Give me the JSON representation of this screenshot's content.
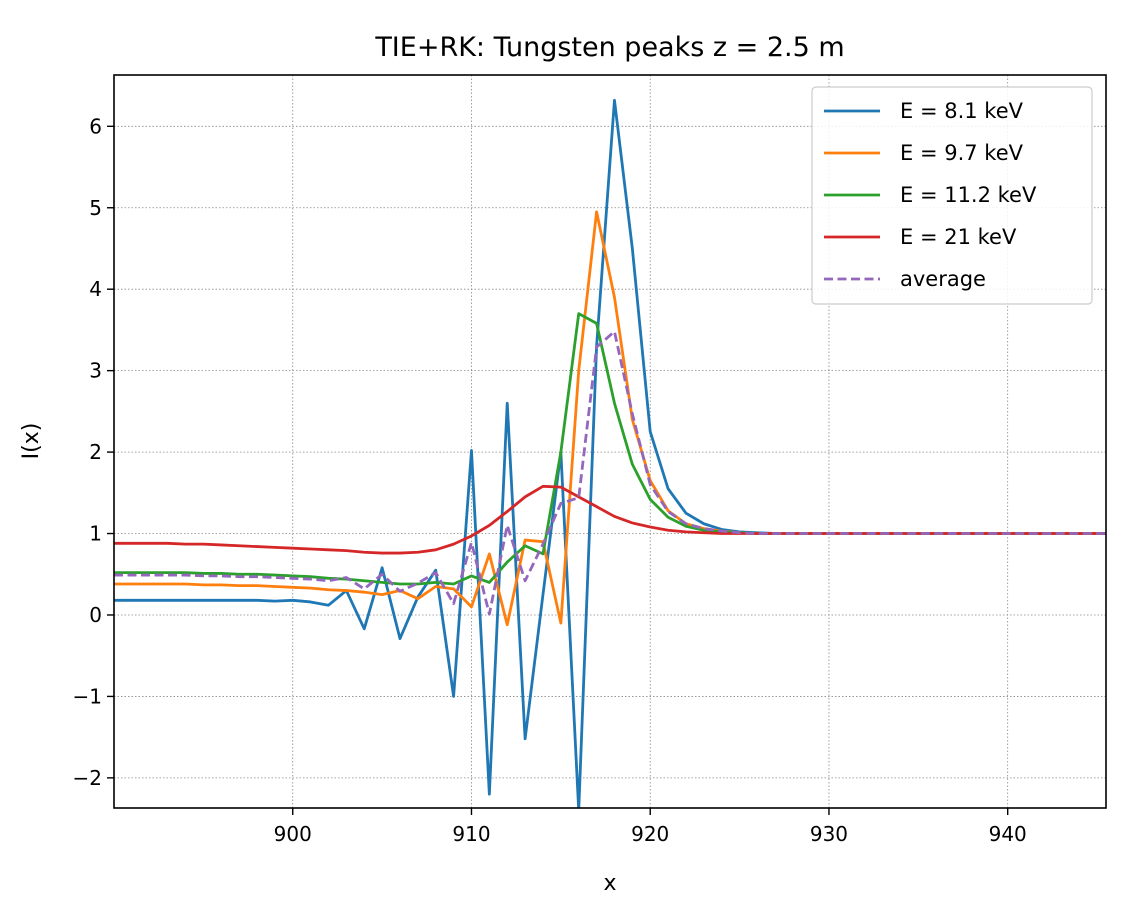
{
  "chart_data": {
    "type": "line",
    "title": "TIE+RK: Tungsten peaks  z = 2.5 m",
    "xlabel": "x",
    "ylabel": "I(x)",
    "xlim": [
      890,
      945.5
    ],
    "ylim": [
      -2.37,
      6.63
    ],
    "xticks": [
      900,
      910,
      920,
      930,
      940
    ],
    "yticks": [
      -2,
      -1,
      0,
      1,
      2,
      3,
      4,
      5,
      6
    ],
    "ytick_labels": [
      "−2",
      "−1",
      "0",
      "1",
      "2",
      "3",
      "4",
      "5",
      "6"
    ],
    "grid": true,
    "legend_position": "top-right",
    "x": [
      890,
      891,
      892,
      893,
      894,
      895,
      896,
      897,
      898,
      899,
      900,
      901,
      902,
      903,
      904,
      905,
      906,
      907,
      908,
      909,
      910,
      911,
      912,
      913,
      914,
      915,
      916,
      917,
      918,
      919,
      920,
      921,
      922,
      923,
      924,
      925,
      926,
      927,
      928,
      929,
      930,
      931,
      932,
      933,
      934,
      935,
      936,
      937,
      938,
      939,
      940,
      941,
      942,
      943,
      944,
      945,
      946
    ],
    "series": [
      {
        "name": "E = 8.1 keV",
        "color": "#1f77b4",
        "dash": "solid",
        "values": [
          0.18,
          0.18,
          0.18,
          0.18,
          0.18,
          0.18,
          0.18,
          0.18,
          0.18,
          0.17,
          0.18,
          0.16,
          0.12,
          0.3,
          -0.17,
          0.58,
          -0.29,
          0.22,
          0.55,
          -1.0,
          2.02,
          -2.2,
          2.6,
          -1.52,
          0.25,
          2.0,
          -2.4,
          3.3,
          6.32,
          4.5,
          2.25,
          1.55,
          1.25,
          1.12,
          1.05,
          1.02,
          1.01,
          1.0,
          1.0,
          1.0,
          1.0,
          1.0,
          1.0,
          1.0,
          1.0,
          1.0,
          1.0,
          1.0,
          1.0,
          1.0,
          1.0,
          1.0,
          1.0,
          1.0,
          1.0,
          1.0,
          1.0
        ]
      },
      {
        "name": "E = 9.7 keV",
        "color": "#ff7f0e",
        "dash": "solid",
        "values": [
          0.38,
          0.38,
          0.38,
          0.38,
          0.38,
          0.37,
          0.37,
          0.36,
          0.36,
          0.35,
          0.34,
          0.33,
          0.31,
          0.3,
          0.28,
          0.25,
          0.3,
          0.2,
          0.35,
          0.32,
          0.1,
          0.75,
          -0.12,
          0.92,
          0.9,
          -0.1,
          3.0,
          4.95,
          3.9,
          2.4,
          1.65,
          1.28,
          1.12,
          1.06,
          1.03,
          1.01,
          1.0,
          1.0,
          1.0,
          1.0,
          1.0,
          1.0,
          1.0,
          1.0,
          1.0,
          1.0,
          1.0,
          1.0,
          1.0,
          1.0,
          1.0,
          1.0,
          1.0,
          1.0,
          1.0,
          1.0,
          1.0
        ]
      },
      {
        "name": "E = 11.2 keV",
        "color": "#2ca02c",
        "dash": "solid",
        "values": [
          0.52,
          0.52,
          0.52,
          0.52,
          0.52,
          0.51,
          0.51,
          0.5,
          0.5,
          0.49,
          0.48,
          0.47,
          0.45,
          0.44,
          0.42,
          0.4,
          0.38,
          0.38,
          0.4,
          0.38,
          0.48,
          0.4,
          0.65,
          0.85,
          0.75,
          2.0,
          3.7,
          3.58,
          2.6,
          1.85,
          1.42,
          1.2,
          1.09,
          1.04,
          1.02,
          1.01,
          1.0,
          1.0,
          1.0,
          1.0,
          1.0,
          1.0,
          1.0,
          1.0,
          1.0,
          1.0,
          1.0,
          1.0,
          1.0,
          1.0,
          1.0,
          1.0,
          1.0,
          1.0,
          1.0,
          1.0,
          1.0
        ]
      },
      {
        "name": "E = 21 keV",
        "color": "#d62728",
        "dash": "solid",
        "values": [
          0.88,
          0.88,
          0.88,
          0.88,
          0.87,
          0.87,
          0.86,
          0.85,
          0.84,
          0.83,
          0.82,
          0.81,
          0.8,
          0.79,
          0.77,
          0.76,
          0.76,
          0.77,
          0.8,
          0.87,
          0.97,
          1.1,
          1.27,
          1.45,
          1.58,
          1.57,
          1.45,
          1.33,
          1.21,
          1.13,
          1.08,
          1.04,
          1.02,
          1.01,
          1.0,
          1.0,
          1.0,
          1.0,
          1.0,
          1.0,
          1.0,
          1.0,
          1.0,
          1.0,
          1.0,
          1.0,
          1.0,
          1.0,
          1.0,
          1.0,
          1.0,
          1.0,
          1.0,
          1.0,
          1.0,
          1.0,
          1.0
        ]
      },
      {
        "name": "average",
        "color": "#9467bd",
        "dash": "dashed",
        "values": [
          0.49,
          0.49,
          0.49,
          0.49,
          0.49,
          0.48,
          0.48,
          0.47,
          0.47,
          0.46,
          0.45,
          0.44,
          0.42,
          0.46,
          0.32,
          0.5,
          0.29,
          0.39,
          0.52,
          0.14,
          0.89,
          0.01,
          1.1,
          0.42,
          0.87,
          1.37,
          1.44,
          3.29,
          3.48,
          2.47,
          1.6,
          1.27,
          1.12,
          1.06,
          1.03,
          1.01,
          1.0,
          1.0,
          1.0,
          1.0,
          1.0,
          1.0,
          1.0,
          1.0,
          1.0,
          1.0,
          1.0,
          1.0,
          1.0,
          1.0,
          1.0,
          1.0,
          1.0,
          1.0,
          1.0,
          1.0,
          1.0
        ]
      }
    ]
  }
}
